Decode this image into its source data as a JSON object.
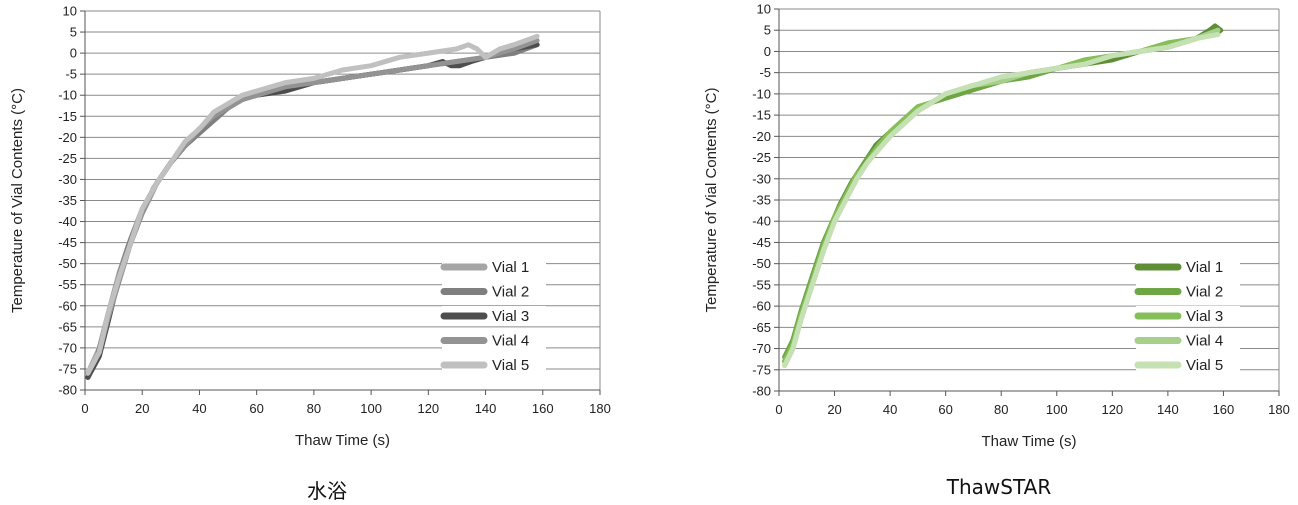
{
  "chart_data": [
    {
      "type": "line",
      "title": "水浴",
      "xlabel": "Thaw Time (s)",
      "ylabel": "Temperature of Vial Contents (°C)",
      "xlim": [
        0,
        180
      ],
      "ylim": [
        -80,
        10
      ],
      "xticks": [
        "0",
        "20",
        "40",
        "60",
        "80",
        "100",
        "120",
        "140",
        "160",
        "180"
      ],
      "yticks": [
        "10",
        "5",
        "0",
        "-5",
        "-10",
        "-15",
        "-20",
        "-25",
        "-30",
        "-35",
        "-40",
        "-45",
        "-50",
        "-55",
        "-60",
        "-65",
        "-70",
        "-75",
        "-80"
      ],
      "grid": true,
      "legend_position": "bottom-right",
      "series": [
        {
          "name": "Vial 1",
          "color": "#a6a6a6",
          "x": [
            1,
            5,
            8,
            12,
            16,
            20,
            25,
            30,
            35,
            40,
            45,
            50,
            55,
            60,
            70,
            80,
            90,
            100,
            110,
            120,
            130,
            140,
            150,
            158
          ],
          "y": [
            -76,
            -70,
            -62,
            -52,
            -44,
            -37,
            -31,
            -26,
            -22,
            -18,
            -15,
            -13,
            -11,
            -10,
            -8,
            -7,
            -6,
            -5,
            -4,
            -3,
            -2,
            -1,
            0,
            2
          ]
        },
        {
          "name": "Vial 2",
          "color": "#7f7f7f",
          "x": [
            1,
            4,
            7,
            11,
            15,
            19,
            24,
            30,
            35,
            40,
            45,
            50,
            55,
            60,
            70,
            80,
            90,
            100,
            110,
            120,
            130,
            140,
            150,
            158
          ],
          "y": [
            -77,
            -73,
            -65,
            -55,
            -46,
            -39,
            -32,
            -26,
            -22,
            -19,
            -16,
            -13,
            -11,
            -10,
            -9,
            -7,
            -6,
            -5,
            -4,
            -3,
            -2,
            -1,
            0,
            2
          ]
        },
        {
          "name": "Vial 3",
          "color": "#4d4d4d",
          "x": [
            1,
            5,
            8,
            12,
            16,
            20,
            25,
            30,
            35,
            40,
            45,
            50,
            55,
            60,
            70,
            80,
            90,
            100,
            110,
            120,
            125,
            128,
            131,
            135,
            140,
            150,
            158
          ],
          "y": [
            -77,
            -72,
            -64,
            -53,
            -45,
            -38,
            -31,
            -26,
            -22,
            -18,
            -15,
            -13,
            -11,
            -10,
            -9,
            -7,
            -6,
            -5,
            -4,
            -3,
            -2,
            -3,
            -3,
            -2,
            -1,
            1,
            2
          ]
        },
        {
          "name": "Vial 4",
          "color": "#939393",
          "x": [
            1,
            5,
            8,
            12,
            16,
            20,
            25,
            30,
            35,
            40,
            45,
            50,
            55,
            60,
            70,
            80,
            90,
            100,
            110,
            120,
            130,
            140,
            150,
            158
          ],
          "y": [
            -76,
            -71,
            -63,
            -54,
            -45,
            -38,
            -31,
            -26,
            -22,
            -18,
            -15,
            -13,
            -11,
            -10,
            -8,
            -7,
            -6,
            -5,
            -4,
            -3,
            -2,
            -1,
            1,
            3
          ]
        },
        {
          "name": "Vial 5",
          "color": "#c0c0c0",
          "x": [
            1,
            5,
            8,
            12,
            16,
            20,
            25,
            30,
            35,
            40,
            45,
            50,
            55,
            60,
            70,
            80,
            90,
            100,
            110,
            120,
            130,
            134,
            137,
            140,
            145,
            150,
            158
          ],
          "y": [
            -76,
            -71,
            -62,
            -53,
            -45,
            -37,
            -31,
            -26,
            -21,
            -18,
            -14,
            -12,
            -10,
            -9,
            -7,
            -6,
            -4,
            -3,
            -1,
            0,
            1,
            2,
            1,
            -1,
            1,
            2,
            4
          ]
        }
      ]
    },
    {
      "type": "line",
      "title": "ThawSTAR",
      "xlabel": "Thaw Time (s)",
      "ylabel": "Temperature of Vial Contents (°C)",
      "xlim": [
        0,
        180
      ],
      "ylim": [
        -80,
        10
      ],
      "xticks": [
        "0",
        "20",
        "40",
        "60",
        "80",
        "100",
        "120",
        "140",
        "160",
        "180"
      ],
      "yticks": [
        "10",
        "5",
        "0",
        "-5",
        "-10",
        "-15",
        "-20",
        "-25",
        "-30",
        "-35",
        "-40",
        "-45",
        "-50",
        "-55",
        "-60",
        "-65",
        "-70",
        "-75",
        "-80"
      ],
      "grid": true,
      "legend_position": "bottom-right",
      "series": [
        {
          "name": "Vial 1",
          "color": "#5e8f37",
          "x": [
            2,
            4,
            7,
            10,
            14,
            18,
            22,
            26,
            30,
            35,
            40,
            45,
            50,
            55,
            60,
            70,
            80,
            90,
            100,
            110,
            120,
            130,
            140,
            150,
            155,
            157,
            159,
            157,
            155
          ],
          "y": [
            -73,
            -70,
            -64,
            -57,
            -49,
            -42,
            -36,
            -31,
            -27,
            -22,
            -19,
            -16,
            -14,
            -12,
            -11,
            -9,
            -7,
            -5,
            -4,
            -3,
            -2,
            0,
            1,
            3,
            5,
            6,
            5,
            4,
            5
          ]
        },
        {
          "name": "Vial 2",
          "color": "#6ea644",
          "x": [
            2,
            5,
            8,
            12,
            16,
            20,
            24,
            28,
            32,
            36,
            40,
            45,
            50,
            55,
            60,
            70,
            80,
            90,
            100,
            110,
            120,
            130,
            140,
            150,
            158
          ],
          "y": [
            -72,
            -68,
            -61,
            -53,
            -45,
            -39,
            -34,
            -29,
            -25,
            -22,
            -19,
            -16,
            -14,
            -12,
            -11,
            -9,
            -7,
            -6,
            -4,
            -3,
            -1,
            0,
            2,
            3,
            5
          ]
        },
        {
          "name": "Vial 3",
          "color": "#86bf59",
          "x": [
            2,
            5,
            8,
            12,
            16,
            20,
            24,
            28,
            32,
            36,
            40,
            45,
            50,
            55,
            60,
            70,
            80,
            90,
            100,
            110,
            120,
            130,
            140,
            150,
            158
          ],
          "y": [
            -73,
            -69,
            -62,
            -54,
            -46,
            -39,
            -34,
            -29,
            -26,
            -22,
            -19,
            -16,
            -13,
            -12,
            -10,
            -8,
            -7,
            -5,
            -4,
            -2,
            -1,
            0,
            2,
            3,
            5
          ]
        },
        {
          "name": "Vial 4",
          "color": "#a6d08a",
          "x": [
            2,
            5,
            8,
            12,
            16,
            20,
            24,
            28,
            32,
            36,
            40,
            45,
            50,
            55,
            60,
            70,
            80,
            90,
            100,
            110,
            120,
            130,
            140,
            150,
            158
          ],
          "y": [
            -74,
            -70,
            -63,
            -55,
            -47,
            -40,
            -35,
            -30,
            -26,
            -23,
            -20,
            -17,
            -14,
            -12,
            -10,
            -8,
            -7,
            -5,
            -4,
            -3,
            -1,
            0,
            1,
            3,
            5
          ]
        },
        {
          "name": "Vial 5",
          "color": "#c5e0b2",
          "x": [
            2,
            5,
            8,
            12,
            16,
            20,
            24,
            28,
            32,
            36,
            40,
            45,
            50,
            55,
            60,
            70,
            80,
            90,
            100,
            110,
            120,
            130,
            140,
            150,
            158
          ],
          "y": [
            -74,
            -70,
            -63,
            -55,
            -47,
            -40,
            -35,
            -30,
            -26,
            -23,
            -20,
            -17,
            -14,
            -12,
            -10,
            -8,
            -6,
            -5,
            -4,
            -3,
            -1,
            0,
            1,
            3,
            4
          ]
        }
      ]
    }
  ]
}
